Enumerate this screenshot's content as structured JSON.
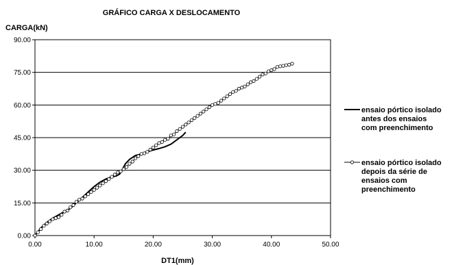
{
  "chart_data": {
    "type": "line",
    "title": "GRÁFICO CARGA X DESLOCAMENTO",
    "xlabel": "DT1(mm)",
    "ylabel": "CARGA(kN)",
    "xlim": [
      0,
      50
    ],
    "ylim": [
      0,
      90
    ],
    "x_ticks": [
      "0.00",
      "10.00",
      "20.00",
      "30.00",
      "40.00",
      "50.00"
    ],
    "y_ticks": [
      "0.00",
      "15.00",
      "30.00",
      "45.00",
      "60.00",
      "75.00",
      "90.00"
    ],
    "grid": "horizontal",
    "legend_position": "right",
    "series": [
      {
        "name": "ensaio pórtico isolado antes dos ensaios com preenchimento",
        "name_lines": [
          "ensaio pórtico isolado",
          "antes dos ensaios",
          "com preenchimento"
        ],
        "marker": "none",
        "color": "#000000",
        "x": [
          0,
          1,
          2,
          3,
          4,
          5,
          6,
          7,
          8,
          9,
          10,
          11,
          12,
          13,
          13.7,
          14.3,
          14.8,
          15.3,
          16,
          17,
          18,
          19,
          20,
          21,
          22,
          23,
          24,
          25,
          25.5
        ],
        "y": [
          0,
          3.5,
          6,
          8,
          9.5,
          11,
          12.5,
          15,
          17.5,
          20,
          22.5,
          24.5,
          26,
          27,
          27.3,
          28.2,
          30.5,
          33,
          35,
          36.8,
          37.5,
          38.5,
          39.3,
          40,
          40.8,
          42,
          44,
          46,
          47.5
        ]
      },
      {
        "name": "ensaio pórtico isolado depois da série de ensaios com preenchimento",
        "name_lines": [
          "ensaio pórtico isolado",
          "depois da série de",
          "ensaios com",
          "preenchimento"
        ],
        "marker": "circle",
        "color": "#000000",
        "x": [
          0,
          0.5,
          1,
          1.5,
          2,
          2.5,
          3,
          3.5,
          4,
          4.5,
          5,
          5.5,
          6,
          6.5,
          7,
          7.5,
          8,
          8.5,
          9,
          9.5,
          10,
          10.5,
          11,
          11.5,
          12,
          12.5,
          13,
          13.5,
          14,
          14.5,
          15,
          15.5,
          16,
          16.5,
          17,
          17.5,
          18,
          18.5,
          19,
          19.5,
          20,
          20.5,
          21,
          21.5,
          22,
          22.5,
          23,
          23.5,
          24,
          24.5,
          25,
          25.5,
          26,
          26.5,
          27,
          27.5,
          28,
          28.5,
          29,
          29.5,
          30,
          30.5,
          31,
          31.5,
          32,
          32.5,
          33,
          33.5,
          34,
          34.5,
          35,
          35.5,
          36,
          36.5,
          37,
          37.5,
          38,
          38.5,
          39,
          39.5,
          40,
          40.5,
          41,
          41.5,
          42,
          42.5,
          43,
          43.5
        ],
        "y": [
          0,
          1.5,
          3,
          4.5,
          5.5,
          6.5,
          7.5,
          8,
          8.5,
          9.5,
          11,
          11.5,
          13,
          14,
          15.5,
          16.5,
          17,
          18,
          19,
          20,
          21,
          22,
          23,
          24,
          25,
          26,
          27,
          28,
          29,
          29.5,
          30.5,
          31.5,
          33,
          34,
          35.5,
          36.5,
          37.5,
          37.8,
          38.5,
          39.5,
          40.5,
          41.5,
          42.5,
          43,
          44,
          44.5,
          46,
          46.5,
          48,
          49,
          50,
          51,
          52,
          53,
          54,
          55,
          56,
          57,
          58,
          59,
          60,
          60.5,
          61,
          62,
          63,
          64,
          65,
          66,
          66.5,
          67.5,
          68,
          68.5,
          69.5,
          70.5,
          71,
          72,
          73,
          74,
          74.5,
          75.5,
          76,
          76.5,
          77.5,
          77.8,
          78,
          78.3,
          78.5,
          79
        ]
      }
    ]
  }
}
